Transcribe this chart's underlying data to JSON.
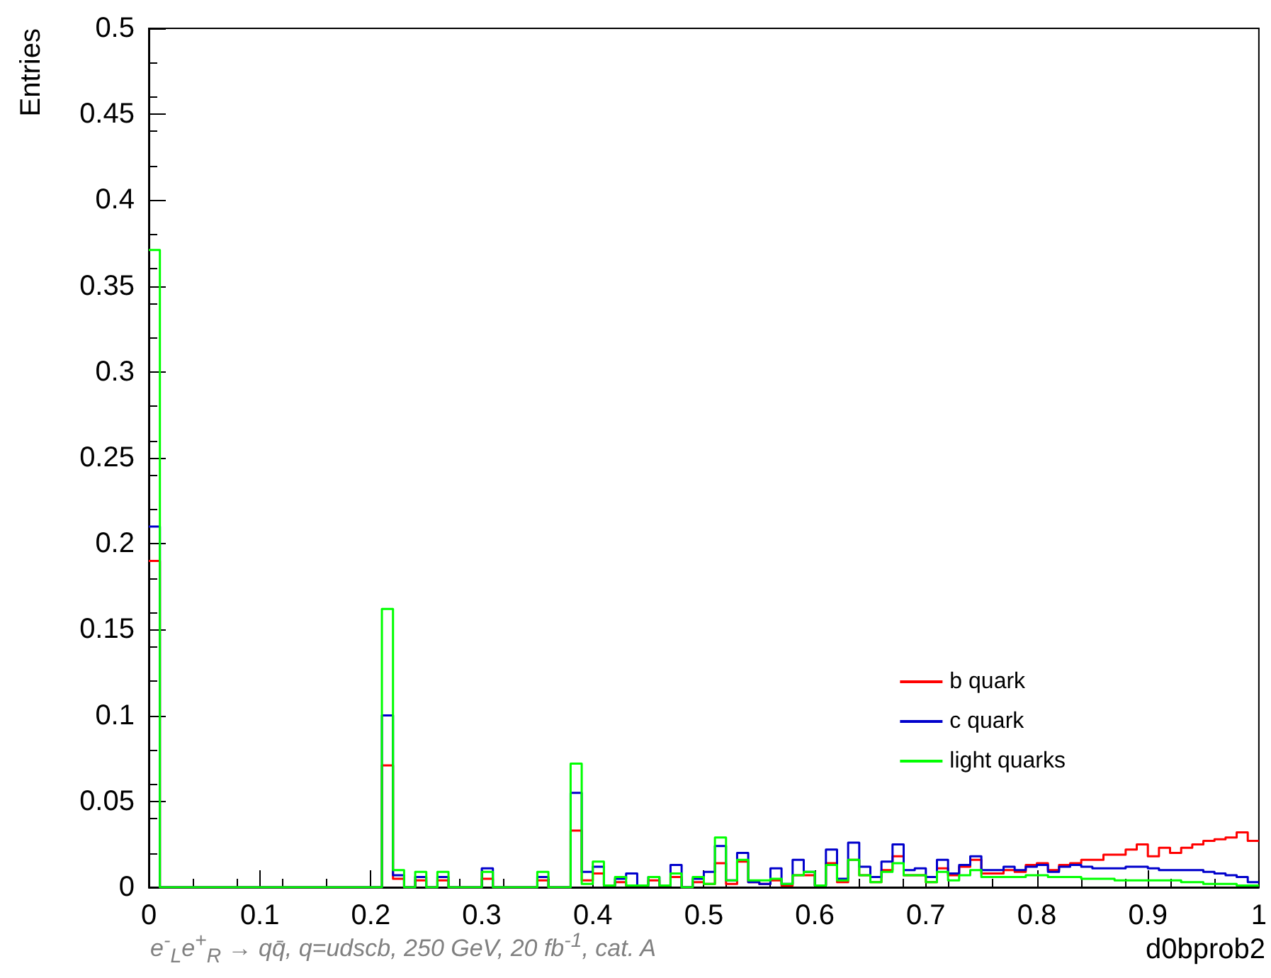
{
  "chart_data": {
    "type": "histogram",
    "xlabel": "d0bprob2",
    "ylabel": "Entries",
    "bins": [
      0,
      0.01,
      0.02,
      0.03,
      0.04,
      0.05,
      0.06,
      0.07,
      0.08,
      0.09,
      0.1,
      0.11,
      0.12,
      0.13,
      0.14,
      0.15,
      0.16,
      0.17,
      0.18,
      0.19,
      0.2,
      0.21,
      0.22,
      0.23,
      0.24,
      0.25,
      0.26,
      0.27,
      0.28,
      0.29,
      0.3,
      0.31,
      0.32,
      0.33,
      0.34,
      0.35,
      0.36,
      0.37,
      0.38,
      0.39,
      0.4,
      0.41,
      0.42,
      0.43,
      0.44,
      0.45,
      0.46,
      0.47,
      0.48,
      0.49,
      0.5,
      0.51,
      0.52,
      0.53,
      0.54,
      0.55,
      0.56,
      0.57,
      0.58,
      0.59,
      0.6,
      0.61,
      0.62,
      0.63,
      0.64,
      0.65,
      0.66,
      0.67,
      0.68,
      0.69,
      0.7,
      0.71,
      0.72,
      0.73,
      0.74,
      0.75,
      0.76,
      0.77,
      0.78,
      0.79,
      0.8,
      0.81,
      0.82,
      0.83,
      0.84,
      0.85,
      0.86,
      0.87,
      0.88,
      0.89,
      0.9,
      0.91,
      0.92,
      0.93,
      0.94,
      0.95,
      0.96,
      0.97,
      0.98,
      0.99,
      1
    ],
    "series": [
      {
        "name": "b quark",
        "color": "#ff0000",
        "values": [
          0.19,
          0,
          0,
          0,
          0,
          0,
          0,
          0,
          0,
          0,
          0,
          0,
          0,
          0,
          0,
          0,
          0,
          0,
          0,
          0,
          0,
          0.071,
          0.005,
          0,
          0.004,
          0,
          0.004,
          0,
          0,
          0,
          0.005,
          0,
          0,
          0,
          0,
          0.004,
          0,
          0,
          0.033,
          0.004,
          0.008,
          0.001,
          0.003,
          0.001,
          0.001,
          0.004,
          0.001,
          0.006,
          0,
          0.003,
          0.002,
          0.014,
          0.002,
          0.015,
          0.003,
          0.002,
          0.004,
          0.001,
          0.007,
          0.007,
          0.001,
          0.014,
          0.003,
          0.016,
          0.007,
          0.003,
          0.01,
          0.018,
          0.007,
          0.007,
          0.003,
          0.011,
          0.007,
          0.012,
          0.016,
          0.008,
          0.008,
          0.01,
          0.009,
          0.013,
          0.014,
          0.01,
          0.013,
          0.014,
          0.016,
          0.016,
          0.019,
          0.019,
          0.022,
          0.025,
          0.018,
          0.023,
          0.02,
          0.023,
          0.025,
          0.027,
          0.028,
          0.029,
          0.032,
          0.027
        ]
      },
      {
        "name": "c quark",
        "color": "#0000cc",
        "values": [
          0.21,
          0,
          0,
          0,
          0,
          0,
          0,
          0,
          0,
          0,
          0,
          0,
          0,
          0,
          0,
          0,
          0,
          0,
          0,
          0,
          0,
          0.1,
          0.007,
          0,
          0.006,
          0,
          0.006,
          0,
          0,
          0,
          0.011,
          0,
          0,
          0,
          0,
          0.006,
          0,
          0,
          0.055,
          0.009,
          0.012,
          0.001,
          0.005,
          0.008,
          0.001,
          0.006,
          0.001,
          0.013,
          0,
          0.005,
          0.009,
          0.024,
          0.004,
          0.02,
          0.003,
          0.002,
          0.011,
          0.002,
          0.016,
          0.009,
          0.001,
          0.022,
          0.005,
          0.026,
          0.012,
          0.006,
          0.015,
          0.025,
          0.01,
          0.011,
          0.006,
          0.016,
          0.008,
          0.013,
          0.018,
          0.01,
          0.01,
          0.012,
          0.01,
          0.012,
          0.013,
          0.009,
          0.012,
          0.013,
          0.012,
          0.011,
          0.011,
          0.011,
          0.012,
          0.012,
          0.011,
          0.01,
          0.01,
          0.01,
          0.01,
          0.009,
          0.008,
          0.007,
          0.006,
          0.003
        ]
      },
      {
        "name": "light quarks",
        "color": "#00ff00",
        "values": [
          0.371,
          0,
          0,
          0,
          0,
          0,
          0,
          0,
          0,
          0,
          0,
          0,
          0,
          0,
          0,
          0,
          0,
          0,
          0,
          0,
          0,
          0.162,
          0.01,
          0,
          0.009,
          0,
          0.009,
          0,
          0,
          0,
          0.009,
          0,
          0,
          0,
          0,
          0.009,
          0,
          0,
          0.072,
          0.002,
          0.015,
          0.001,
          0.006,
          0.001,
          0.001,
          0.006,
          0.001,
          0.008,
          0,
          0.006,
          0.002,
          0.029,
          0.004,
          0.016,
          0.004,
          0.004,
          0.005,
          0.002,
          0.007,
          0.009,
          0.001,
          0.013,
          0.004,
          0.016,
          0.007,
          0.003,
          0.009,
          0.014,
          0.007,
          0.007,
          0.003,
          0.009,
          0.004,
          0.007,
          0.01,
          0.006,
          0.006,
          0.006,
          0.006,
          0.007,
          0.007,
          0.006,
          0.006,
          0.006,
          0.005,
          0.005,
          0.005,
          0.004,
          0.004,
          0.004,
          0.004,
          0.004,
          0.004,
          0.003,
          0.003,
          0.002,
          0.002,
          0.002,
          0.001,
          0.001
        ]
      }
    ],
    "xlim": [
      0,
      1
    ],
    "xticks": [
      0,
      0.1,
      0.2,
      0.3,
      0.4,
      0.5,
      0.6,
      0.7,
      0.8,
      0.9,
      1
    ],
    "ylim": [
      0,
      0.5
    ],
    "yticks": [
      0,
      0.05,
      0.1,
      0.15,
      0.2,
      0.25,
      0.3,
      0.35,
      0.4,
      0.45,
      0.5
    ],
    "grid": false,
    "legend": "bottom right",
    "annotations": [
      "e$^{-}$$_{L}$e$^{+}$$_{R}$ → qq̄, q=udscb, 250 GeV, 20 fb$^{-1}$, cat. A"
    ]
  }
}
